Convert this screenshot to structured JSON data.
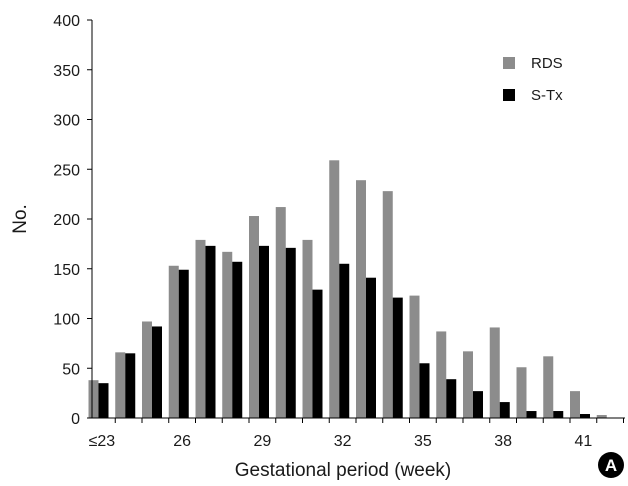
{
  "chart_data": {
    "type": "bar",
    "categories": [
      "≤23",
      "24",
      "25",
      "26",
      "27",
      "28",
      "29",
      "30",
      "31",
      "32",
      "33",
      "34",
      "35",
      "36",
      "37",
      "38",
      "39",
      "40",
      "41",
      "42",
      "43"
    ],
    "x_tick_labels": [
      "≤23",
      "26",
      "29",
      "32",
      "35",
      "38",
      "41"
    ],
    "xlabel": "Gestational period (week)",
    "ylabel": "No.",
    "ylim": [
      0,
      400
    ],
    "y_ticks": [
      0,
      50,
      100,
      150,
      200,
      250,
      300,
      350,
      400
    ],
    "grid": false,
    "legend_position": "top-right",
    "series": [
      {
        "name": "RDS",
        "color": "#8c8c8c",
        "values": [
          38,
          66,
          97,
          153,
          179,
          167,
          203,
          212,
          179,
          259,
          239,
          228,
          123,
          87,
          67,
          91,
          51,
          62,
          27,
          3,
          0
        ]
      },
      {
        "name": "S-Tx",
        "color": "#000000",
        "values": [
          35,
          65,
          92,
          149,
          173,
          157,
          173,
          171,
          129,
          155,
          141,
          121,
          55,
          39,
          27,
          16,
          7,
          7,
          4,
          0,
          0
        ]
      }
    ],
    "panel_badge": "A"
  }
}
